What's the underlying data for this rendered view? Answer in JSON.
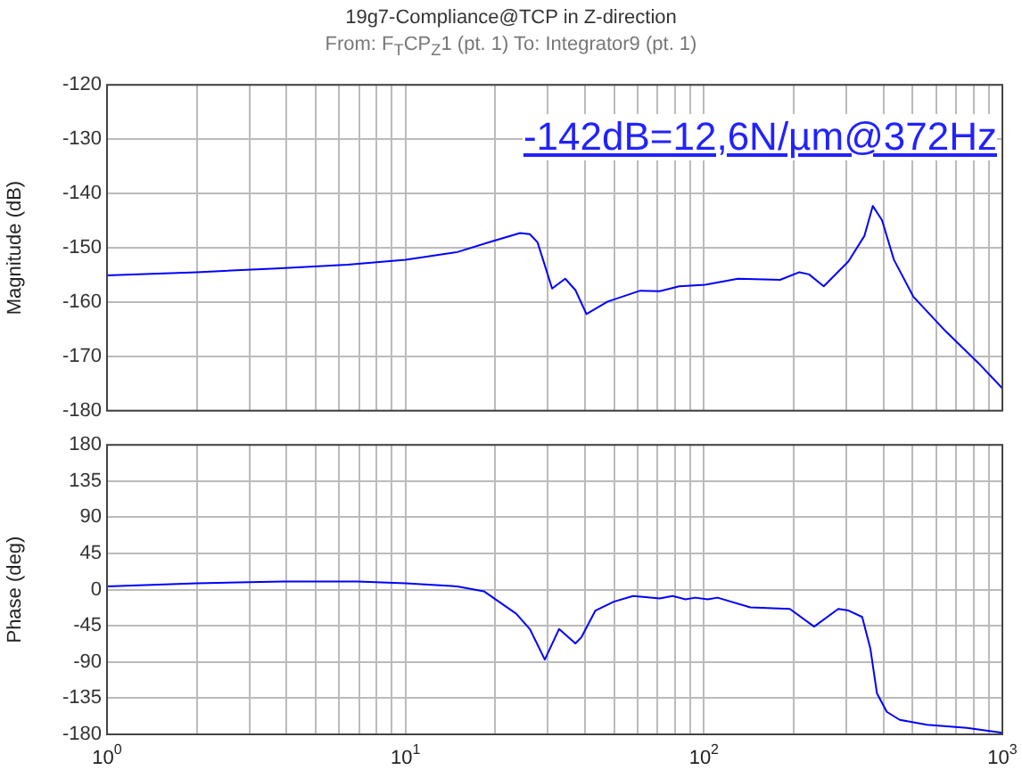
{
  "chart_data": [
    {
      "type": "line",
      "title": "19g7-Compliance@TCP in Z-direction",
      "subtitle": "From: F$_{T}$CP$_{Z}$1 (pt. 1)  To: Integrator9 (pt. 1)",
      "ylabel": "Magnitude (dB)",
      "annotations": [
        "-142dB=12,6N/µm@372Hz"
      ],
      "log": "x",
      "grid": true,
      "legend": false,
      "marker": "none",
      "line_style": "solid",
      "tick_labels": "y",
      "xlim": [
        1,
        1000
      ],
      "xticks": [
        {
          "value": 1,
          "label": null
        },
        {
          "value": 2,
          "label": null
        },
        {
          "value": 3,
          "label": null
        },
        {
          "value": 4,
          "label": null
        },
        {
          "value": 5,
          "label": null
        },
        {
          "value": 6,
          "label": null
        },
        {
          "value": 7,
          "label": null
        },
        {
          "value": 8,
          "label": null
        },
        {
          "value": 9,
          "label": null
        },
        {
          "value": 10,
          "label": null
        },
        {
          "value": 20,
          "label": null
        },
        {
          "value": 30,
          "label": null
        },
        {
          "value": 40,
          "label": null
        },
        {
          "value": 50,
          "label": null
        },
        {
          "value": 60,
          "label": null
        },
        {
          "value": 70,
          "label": null
        },
        {
          "value": 80,
          "label": null
        },
        {
          "value": 90,
          "label": null
        },
        {
          "value": 100,
          "label": null
        },
        {
          "value": 200,
          "label": null
        },
        {
          "value": 300,
          "label": null
        },
        {
          "value": 400,
          "label": null
        },
        {
          "value": 500,
          "label": null
        },
        {
          "value": 600,
          "label": null
        },
        {
          "value": 700,
          "label": null
        },
        {
          "value": 800,
          "label": null
        },
        {
          "value": 900,
          "label": null
        },
        {
          "value": 1000,
          "label": null
        }
      ],
      "ylim": [
        -180,
        -120
      ],
      "yticks": [
        -180,
        -170,
        -160,
        -150,
        -140,
        -130,
        -120
      ],
      "series": [
        {
          "color": "#0000ff",
          "x": [
            1,
            2,
            3.7,
            6.4,
            10,
            14.9,
            19.3,
            24.2,
            26.1,
            27.7,
            31,
            34.3,
            37.1,
            40.4,
            47.6,
            61.2,
            71.1,
            82.7,
            101,
            130,
            180,
            209,
            225,
            252,
            305,
            345,
            368,
            395,
            433,
            503,
            646,
            830,
            1000
          ],
          "values": [
            -155.1,
            -154.5,
            -153.8,
            -153.1,
            -152.2,
            -150.8,
            -148.9,
            -147.3,
            -147.5,
            -149,
            -157.5,
            -155.7,
            -157.8,
            -162.2,
            -159.9,
            -157.9,
            -158,
            -157.1,
            -156.8,
            -155.7,
            -155.9,
            -154.5,
            -154.9,
            -157.1,
            -152.5,
            -147.8,
            -142.3,
            -144.9,
            -152.2,
            -159,
            -165.4,
            -171.2,
            -175.9
          ]
        }
      ]
    },
    {
      "type": "line",
      "ylabel": "Phase (deg)",
      "log": "x",
      "grid": true,
      "legend": false,
      "marker": "none",
      "line_style": "solid",
      "xlim": [
        1,
        1000
      ],
      "xticks": [
        {
          "value": 1,
          "label": "10$^{0}$"
        },
        {
          "value": 2,
          "label": null
        },
        {
          "value": 3,
          "label": null
        },
        {
          "value": 4,
          "label": null
        },
        {
          "value": 5,
          "label": null
        },
        {
          "value": 6,
          "label": null
        },
        {
          "value": 7,
          "label": null
        },
        {
          "value": 8,
          "label": null
        },
        {
          "value": 9,
          "label": null
        },
        {
          "value": 10,
          "label": "10$^{1}$"
        },
        {
          "value": 20,
          "label": null
        },
        {
          "value": 30,
          "label": null
        },
        {
          "value": 40,
          "label": null
        },
        {
          "value": 50,
          "label": null
        },
        {
          "value": 60,
          "label": null
        },
        {
          "value": 70,
          "label": null
        },
        {
          "value": 80,
          "label": null
        },
        {
          "value": 90,
          "label": null
        },
        {
          "value": 100,
          "label": "10$^{2}$"
        },
        {
          "value": 200,
          "label": null
        },
        {
          "value": 300,
          "label": null
        },
        {
          "value": 400,
          "label": null
        },
        {
          "value": 500,
          "label": null
        },
        {
          "value": 600,
          "label": null
        },
        {
          "value": 700,
          "label": null
        },
        {
          "value": 800,
          "label": null
        },
        {
          "value": 900,
          "label": null
        },
        {
          "value": 1000,
          "label": "10$^{3}$"
        }
      ],
      "ylim": [
        -180,
        180
      ],
      "yticks": [
        -180,
        -135,
        -90,
        -45,
        0,
        45,
        90,
        135,
        180
      ],
      "series": [
        {
          "color": "#0000ff",
          "x": [
            1,
            2,
            3.9,
            6.9,
            10,
            14.9,
            18.3,
            23.5,
            26.1,
            29.3,
            32.7,
            37.1,
            38.9,
            43.3,
            49.9,
            57.9,
            71.1,
            78.5,
            86.7,
            93.5,
            103,
            111,
            143,
            194,
            234,
            282,
            305,
            339,
            361,
            380,
            410,
            453,
            559,
            761,
            1000
          ],
          "values": [
            4,
            8,
            10,
            10,
            8,
            4,
            -2,
            -30,
            -49,
            -87,
            -49,
            -67,
            -59,
            -26,
            -15,
            -8,
            -11,
            -8,
            -12,
            -10,
            -12,
            -10,
            -22,
            -24,
            -46,
            -24,
            -26,
            -34,
            -73,
            -129,
            -152,
            -162,
            -168,
            -172,
            -178
          ]
        }
      ]
    }
  ]
}
